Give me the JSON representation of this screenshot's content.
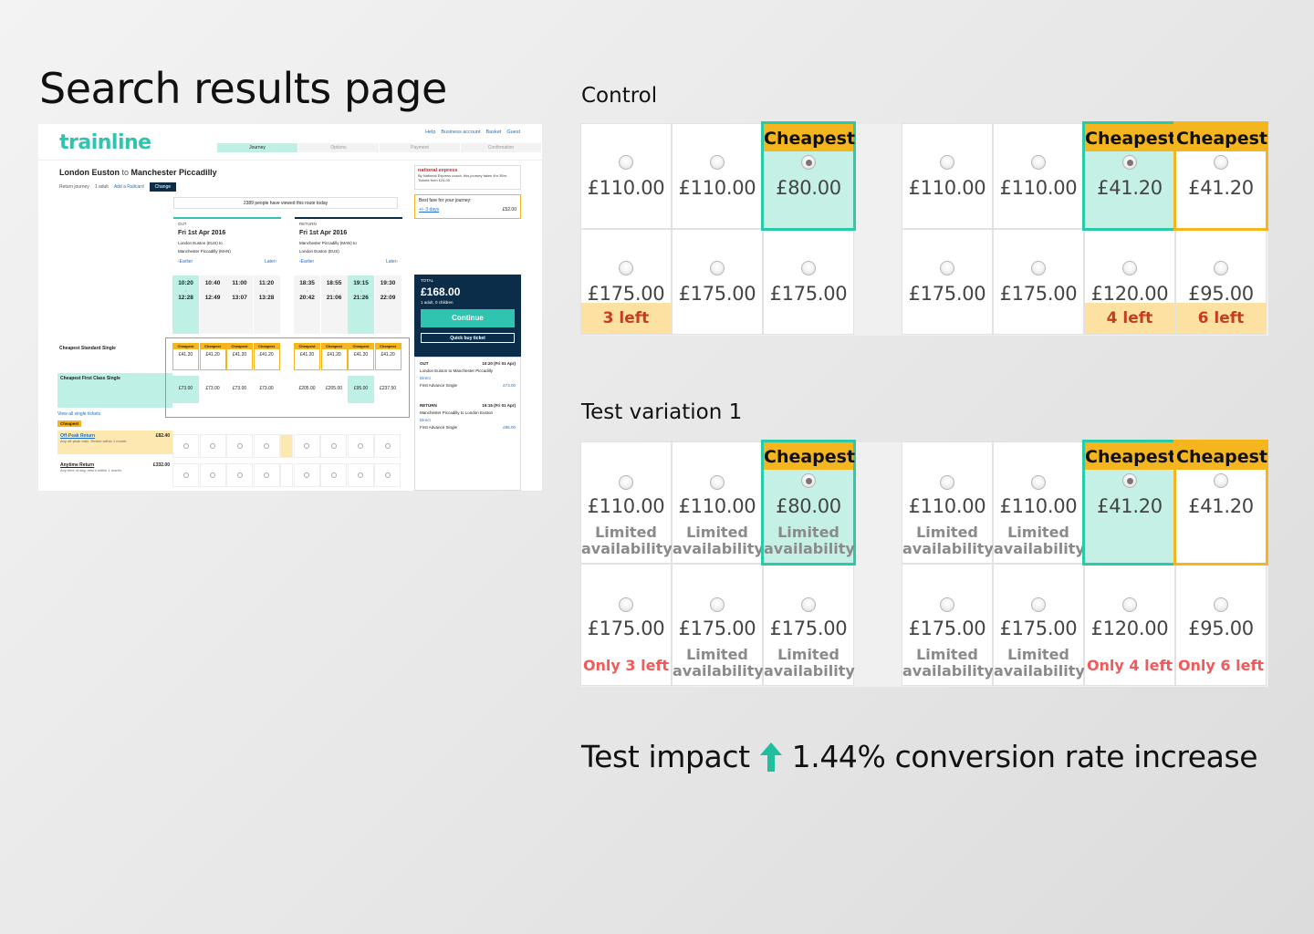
{
  "heading": "Search results page",
  "control_heading": "Control",
  "variation_heading": "Test variation 1",
  "impact": {
    "prefix": "Test impact",
    "text": "1.44% conversion rate increase",
    "arrow_color": "#1dbf9c"
  },
  "colors": {
    "teal": "#2bc9a8",
    "gold": "#f5b51f",
    "navy": "#0b2d4a"
  },
  "cheapest_label": "Cheapest",
  "limited_l1": "Limited",
  "limited_l2": "availability",
  "control": {
    "out": {
      "row1": [
        "£110.00",
        "£110.00",
        "£80.00"
      ],
      "row2": [
        "£175.00",
        "£175.00",
        "£175.00"
      ],
      "row2_notes": [
        "3 left",
        "",
        ""
      ]
    },
    "ret": {
      "row1": [
        "£110.00",
        "£110.00",
        "£41.20",
        "£41.20"
      ],
      "row2": [
        "£175.00",
        "£175.00",
        "£120.00",
        "£95.00"
      ],
      "row2_notes": [
        "",
        "",
        "4 left",
        "6 left"
      ]
    }
  },
  "variation": {
    "out": {
      "row1": [
        "£110.00",
        "£110.00",
        "£80.00"
      ],
      "row2": [
        "£175.00",
        "£175.00",
        "£175.00"
      ],
      "row2_notes": [
        "Only 3 left",
        "",
        ""
      ]
    },
    "ret": {
      "row1": [
        "£110.00",
        "£110.00",
        "£41.20",
        "£41.20"
      ],
      "row2": [
        "£175.00",
        "£175.00",
        "£120.00",
        "£95.00"
      ],
      "row2_notes": [
        "",
        "",
        "Only 4 left",
        "Only 6 left"
      ]
    }
  },
  "shot": {
    "logo": "trainline",
    "links": [
      "Help",
      "Business account",
      "Basket",
      "Guest"
    ],
    "steps": [
      "Journey",
      "Options",
      "Payment",
      "Confirmation"
    ],
    "route_from": "London Euston",
    "route_to_word": "to",
    "route_dest": "Manchester Piccadilly",
    "meta": [
      "Return journey",
      "1 adult",
      "Add a Railcard"
    ],
    "change": "Change",
    "viewed": "2389 people have viewed this route today",
    "out": {
      "dir": "OUT",
      "date": "Fri 1st Apr 2016",
      "stn1": "London Euston (EUS) to",
      "stn2": "Manchester Piccadilly (MAN)",
      "earlier": "‹Earlier",
      "later": "Later›"
    },
    "ret": {
      "dir": "RETURN",
      "date": "Fri 1st Apr 2016",
      "stn1": "Manchester Piccadilly (MAN) to",
      "stn2": "London Euston (EUS)",
      "earlier": "‹Earlier",
      "later": "Later›"
    },
    "out_times": [
      [
        "10:20",
        "12:28"
      ],
      [
        "10:40",
        "12:49"
      ],
      [
        "11:00",
        "13:07"
      ],
      [
        "11:20",
        "13:28"
      ]
    ],
    "ret_times": [
      [
        "18:35",
        "20:42"
      ],
      [
        "18:55",
        "21:06"
      ],
      [
        "19:15",
        "21:26"
      ],
      [
        "19:30",
        "22:09"
      ]
    ],
    "std_label": "Cheapest Standard Single",
    "fc_label": "Cheapest First Class Single",
    "std_out": [
      "£41.20",
      "£41.20",
      "£41.20",
      "£41.20"
    ],
    "std_ret": [
      "£41.20",
      "£41.20",
      "£41.20",
      "£41.20"
    ],
    "fc_out": [
      "£73.00",
      "£73.00",
      "£73.00",
      "£73.00"
    ],
    "fc_ret": [
      "£205.00",
      "£205.00",
      "£95.00",
      "£237.50"
    ],
    "viewall": "View all single tickets",
    "tag": "Cheapest",
    "offpeak": "Off-Peak Return",
    "offpeak_price": "£82.40",
    "offpeak_desc": "Any off-peak train. Return within 1 month.",
    "anytime": "Anytime Return",
    "anytime_price": "£332.00",
    "anytime_desc": "Any time of day, return within 1 month.",
    "natexp": "national express",
    "natexp_text": "By National Express coach, this journey takes 4hr 35m. Tickets from £24.00",
    "bestfare": "Best fare for your journey:",
    "bestfare_link": "+/- 3 days",
    "bestfare_price": "£52.00",
    "total_label": "TOTAL",
    "total": "£168.00",
    "pax": "1 adult, 0 children",
    "continue": "Continue",
    "quickbuy": "Quick buy ticket",
    "sum_out": "OUT",
    "sum_out_time": "10:20 (Fri 01 Apr)",
    "sum_out_route": "London Euston to Manchester Piccadilly",
    "sum_direct": "Direct",
    "sum_fare": "First Advance Single",
    "sum_fare_price": "£73.00",
    "sum_ret": "RETURN",
    "sum_ret_time": "19:15 (Fri 01 Apr)",
    "sum_ret_route": "Manchester Piccadilly to London Euston",
    "sum_ret_price": "£95.00"
  }
}
